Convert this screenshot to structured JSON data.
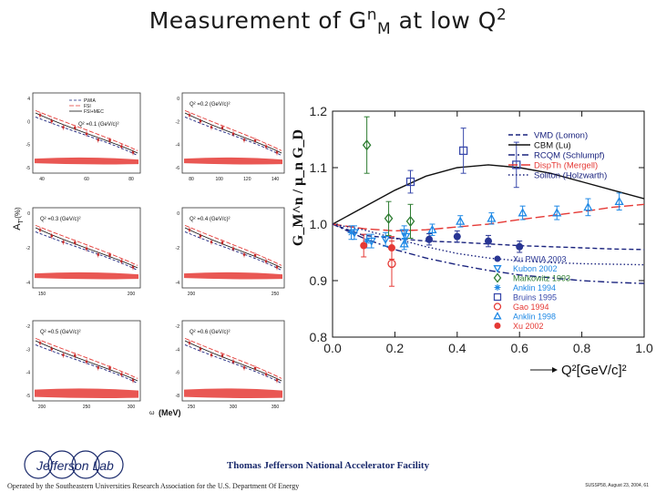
{
  "slide": {
    "title_main": "Measurement of G",
    "title_sup": "n",
    "title_sub": "M",
    "title_tail": " at low Q",
    "title_sup2": "2"
  },
  "left_figure": {
    "ylabel": "A",
    "ylabel_sub": "T'",
    "ylabel_unit": "(%)",
    "xlabel": "(MeV)",
    "xlabel_omega": "ω",
    "legend": [
      "PWIA",
      "FSI",
      "FSI+MEC"
    ],
    "panels": [
      {
        "label": "Q² =0.1 (GeV/c)²",
        "yticks": [
          "4",
          "0",
          "-5",
          "-5"
        ],
        "xticks": [
          "40",
          "60",
          "80"
        ]
      },
      {
        "label": "Q² =0.2 (GeV/c)²",
        "yticks": [
          "0",
          "-2",
          "-4",
          "-6"
        ],
        "xticks": [
          "80",
          "100",
          "120",
          "140"
        ]
      },
      {
        "label": "Q² =0.3 (GeV/c)²",
        "yticks": [
          "0",
          "-2",
          "-4"
        ],
        "xticks": [
          "150",
          "200"
        ]
      },
      {
        "label": "Q² =0.4 (GeV/c)²",
        "yticks": [
          "0",
          "-2",
          "-4"
        ],
        "xticks": [
          "200",
          "250"
        ]
      },
      {
        "label": "Q² =0.5 (GeV/c)²",
        "yticks": [
          "-2",
          "-3",
          "-4",
          "-5"
        ],
        "xticks": [
          "200",
          "250",
          "300"
        ]
      },
      {
        "label": "Q² =0.6 (GeV/c)²",
        "yticks": [
          "-2",
          "-4",
          "-6",
          "-8"
        ],
        "xticks": [
          "250",
          "300",
          "350"
        ]
      }
    ]
  },
  "chart_data": {
    "type": "scatter",
    "title": "",
    "xlabel": "Q²[GeV/c]²",
    "ylabel": "G_M^n / μ_n G_D",
    "xlim": [
      0.0,
      1.0
    ],
    "ylim": [
      0.8,
      1.2
    ],
    "xticks": [
      "0.0",
      "0.2",
      "0.4",
      "0.6",
      "0.8",
      "1.0"
    ],
    "yticks": [
      "0.8",
      "0.9",
      "1.0",
      "1.1",
      "1.2"
    ],
    "legend_lines_position": "top-right",
    "legend_points_position": "bottom-right",
    "curves": [
      {
        "name": "VMD (Lomon)",
        "color": "#1a237e",
        "style": "dash",
        "x": [
          0.0,
          0.1,
          0.2,
          0.3,
          0.4,
          0.5,
          0.6,
          0.7,
          0.8,
          0.9,
          1.0
        ],
        "y": [
          1.0,
          0.98,
          0.975,
          0.97,
          0.968,
          0.965,
          0.962,
          0.96,
          0.958,
          0.956,
          0.955
        ]
      },
      {
        "name": "CBM (Lu)",
        "color": "#111111",
        "style": "solid",
        "x": [
          0.0,
          0.1,
          0.2,
          0.3,
          0.4,
          0.5,
          0.6,
          0.7,
          0.8,
          0.9,
          1.0
        ],
        "y": [
          1.0,
          1.03,
          1.06,
          1.085,
          1.1,
          1.105,
          1.1,
          1.09,
          1.075,
          1.06,
          1.045
        ]
      },
      {
        "name": "RCQM (Schlumpf)",
        "color": "#1a237e",
        "style": "dashdot",
        "x": [
          0.0,
          0.1,
          0.2,
          0.3,
          0.4,
          0.5,
          0.6,
          0.7,
          0.8,
          0.9,
          1.0
        ],
        "y": [
          1.0,
          0.975,
          0.955,
          0.94,
          0.928,
          0.918,
          0.91,
          0.905,
          0.9,
          0.897,
          0.895
        ]
      },
      {
        "name": "DispTh (Mergell)",
        "color": "#e53935",
        "style": "longdash",
        "x": [
          0.0,
          0.1,
          0.2,
          0.3,
          0.4,
          0.5,
          0.6,
          0.7,
          0.8,
          0.9,
          1.0
        ],
        "y": [
          1.0,
          0.992,
          0.988,
          0.99,
          0.995,
          1.0,
          1.008,
          1.015,
          1.022,
          1.03,
          1.035
        ]
      },
      {
        "name": "Soliton (Holzwarth)",
        "color": "#1a237e",
        "style": "dot",
        "x": [
          0.0,
          0.1,
          0.2,
          0.3,
          0.4,
          0.5,
          0.6,
          0.7,
          0.8,
          0.9,
          1.0
        ],
        "y": [
          1.0,
          0.99,
          0.975,
          0.96,
          0.948,
          0.94,
          0.935,
          0.932,
          0.93,
          0.929,
          0.928
        ]
      }
    ],
    "series": [
      {
        "name": "Xu PWIA 2003",
        "color": "#283593",
        "marker": "filled-circle",
        "x": [
          0.31,
          0.4,
          0.5,
          0.6
        ],
        "y": [
          0.973,
          0.978,
          0.97,
          0.96
        ],
        "err": [
          0.01,
          0.01,
          0.01,
          0.01
        ]
      },
      {
        "name": "Kubon 2002",
        "color": "#1e88e5",
        "marker": "down-triangle",
        "x": [
          0.07,
          0.125,
          0.17,
          0.23,
          0.235
        ],
        "y": [
          0.985,
          0.97,
          0.973,
          0.985,
          0.978
        ],
        "err": [
          0.012,
          0.012,
          0.012,
          0.012,
          0.012
        ]
      },
      {
        "name": "Markowitz 1993",
        "color": "#2e7d32",
        "marker": "diamond",
        "x": [
          0.11,
          0.18,
          0.25
        ],
        "y": [
          1.14,
          1.01,
          1.005
        ],
        "err": [
          0.05,
          0.03,
          0.03
        ]
      },
      {
        "name": "Anklin 1994",
        "color": "#1e88e5",
        "marker": "star",
        "x": [
          0.06,
          0.11
        ],
        "y": [
          0.985,
          0.97
        ],
        "err": [
          0.012,
          0.012
        ]
      },
      {
        "name": "Bruins 1995",
        "color": "#3949ab",
        "marker": "square",
        "x": [
          0.25,
          0.42,
          0.59
        ],
        "y": [
          1.075,
          1.13,
          1.105
        ],
        "err": [
          0.02,
          0.04,
          0.04
        ]
      },
      {
        "name": "Gao 1994",
        "color": "#e53935",
        "marker": "open-circle",
        "x": [
          0.19
        ],
        "y": [
          0.93
        ],
        "err": [
          0.04
        ]
      },
      {
        "name": "Anklin 1998",
        "color": "#1e88e5",
        "marker": "up-triangle",
        "x": [
          0.23,
          0.32,
          0.41,
          0.51,
          0.61,
          0.72,
          0.82,
          0.92
        ],
        "y": [
          0.965,
          0.99,
          1.005,
          1.01,
          1.02,
          1.02,
          1.03,
          1.04
        ],
        "err": [
          0.01,
          0.01,
          0.01,
          0.01,
          0.012,
          0.012,
          0.015,
          0.015
        ]
      },
      {
        "name": "Xu 2002",
        "color": "#e53935",
        "marker": "filled-circle",
        "x": [
          0.1,
          0.19
        ],
        "y": [
          0.962,
          0.958
        ],
        "err": [
          0.02,
          0.02
        ]
      }
    ]
  },
  "footer": {
    "lab_logo": "Jefferson Lab",
    "facility": "Thomas Jefferson National Accelerator Facility",
    "operated_by": "Operated by the Southeastern Universities Research Association for the U.S. Department Of Energy",
    "right_text": "SUSSP58, August 23, 2004, 61"
  }
}
